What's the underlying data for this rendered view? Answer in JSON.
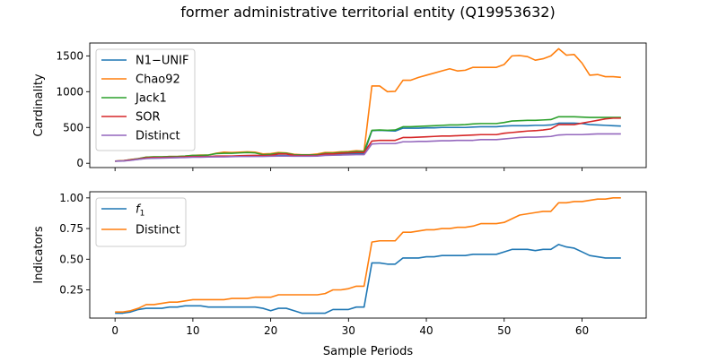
{
  "figure": {
    "title": "former administrative territorial entity (Q19953632)",
    "xlabel": "Sample Periods"
  },
  "chart_data": [
    {
      "type": "line",
      "ylabel": "Cardinality",
      "xlim": [
        -3.25,
        68.25
      ],
      "ylim": [
        -60,
        1680
      ],
      "xticks": [
        0,
        10,
        20,
        30,
        40,
        50,
        60
      ],
      "xtick_labels_visible": false,
      "yticks": [
        0,
        500,
        1000,
        1500
      ],
      "ytick_labels": [
        "0",
        "500",
        "1000",
        "1500"
      ],
      "grid": false,
      "legend": "top-left",
      "x": [
        0,
        1,
        2,
        3,
        4,
        5,
        6,
        7,
        8,
        9,
        10,
        11,
        12,
        13,
        14,
        15,
        16,
        17,
        18,
        19,
        20,
        21,
        22,
        23,
        24,
        25,
        26,
        27,
        28,
        29,
        30,
        31,
        32,
        33,
        34,
        35,
        36,
        37,
        38,
        39,
        40,
        41,
        42,
        43,
        44,
        45,
        46,
        47,
        48,
        49,
        50,
        51,
        52,
        53,
        54,
        55,
        56,
        57,
        58,
        59,
        60,
        61,
        62,
        63,
        64,
        65
      ],
      "series": [
        {
          "name": "N1−UNIF",
          "color": "#1f77b4",
          "values": [
            30,
            32,
            45,
            55,
            70,
            72,
            75,
            78,
            80,
            85,
            90,
            90,
            92,
            92,
            95,
            95,
            98,
            98,
            100,
            100,
            105,
            108,
            108,
            105,
            103,
            103,
            106,
            115,
            120,
            125,
            130,
            135,
            135,
            455,
            460,
            455,
            450,
            490,
            490,
            490,
            495,
            495,
            500,
            500,
            500,
            500,
            505,
            510,
            510,
            510,
            520,
            525,
            525,
            525,
            530,
            530,
            535,
            560,
            560,
            560,
            555,
            540,
            535,
            530,
            525,
            520
          ]
        },
        {
          "name": "Chao92",
          "color": "#ff7f0e",
          "values": [
            30,
            35,
            50,
            65,
            85,
            90,
            90,
            95,
            95,
            100,
            110,
            115,
            115,
            140,
            155,
            150,
            155,
            160,
            155,
            130,
            135,
            150,
            145,
            125,
            120,
            120,
            130,
            150,
            150,
            160,
            165,
            175,
            170,
            1080,
            1080,
            1000,
            1005,
            1160,
            1160,
            1200,
            1230,
            1260,
            1290,
            1320,
            1290,
            1300,
            1340,
            1340,
            1340,
            1340,
            1380,
            1500,
            1505,
            1490,
            1440,
            1460,
            1500,
            1600,
            1510,
            1520,
            1400,
            1230,
            1240,
            1210,
            1210,
            1200
          ]
        },
        {
          "name": "Jack1",
          "color": "#2ca02c",
          "values": [
            30,
            35,
            50,
            65,
            85,
            90,
            90,
            95,
            95,
            100,
            110,
            110,
            115,
            135,
            140,
            140,
            145,
            150,
            145,
            120,
            125,
            140,
            140,
            120,
            118,
            118,
            120,
            140,
            140,
            150,
            155,
            165,
            165,
            460,
            465,
            460,
            465,
            510,
            510,
            515,
            520,
            525,
            530,
            535,
            535,
            540,
            550,
            555,
            555,
            555,
            570,
            590,
            595,
            600,
            600,
            605,
            610,
            650,
            650,
            650,
            645,
            640,
            640,
            640,
            640,
            640
          ]
        },
        {
          "name": "SOR",
          "color": "#d62728",
          "values": [
            30,
            35,
            48,
            60,
            75,
            80,
            80,
            85,
            85,
            90,
            95,
            95,
            95,
            100,
            100,
            100,
            105,
            108,
            110,
            108,
            110,
            130,
            130,
            110,
            108,
            108,
            110,
            130,
            130,
            140,
            145,
            150,
            150,
            310,
            320,
            320,
            320,
            360,
            360,
            365,
            370,
            375,
            380,
            380,
            385,
            390,
            395,
            400,
            400,
            400,
            420,
            430,
            440,
            450,
            455,
            465,
            480,
            540,
            540,
            540,
            560,
            580,
            600,
            620,
            630,
            630
          ]
        },
        {
          "name": "Distinct",
          "color": "#9467bd",
          "values": [
            30,
            32,
            40,
            55,
            65,
            70,
            72,
            75,
            78,
            80,
            85,
            85,
            88,
            90,
            90,
            92,
            95,
            95,
            95,
            95,
            98,
            100,
            100,
            98,
            98,
            98,
            100,
            110,
            112,
            115,
            118,
            120,
            120,
            270,
            275,
            275,
            275,
            300,
            300,
            305,
            305,
            310,
            315,
            315,
            320,
            320,
            320,
            330,
            330,
            330,
            340,
            350,
            360,
            365,
            365,
            370,
            375,
            395,
            400,
            400,
            400,
            405,
            410,
            410,
            410,
            410
          ]
        }
      ]
    },
    {
      "type": "line",
      "ylabel": "Indicators",
      "xlim": [
        -3.25,
        68.25
      ],
      "ylim": [
        0.02,
        1.05
      ],
      "xticks": [
        0,
        10,
        20,
        30,
        40,
        50,
        60
      ],
      "xtick_labels": [
        "0",
        "10",
        "20",
        "30",
        "40",
        "50",
        "60"
      ],
      "yticks": [
        0.25,
        0.5,
        0.75,
        1.0
      ],
      "ytick_labels": [
        "0.25",
        "0.50",
        "0.75",
        "1.00"
      ],
      "grid": false,
      "legend": "top-left",
      "x": [
        0,
        1,
        2,
        3,
        4,
        5,
        6,
        7,
        8,
        9,
        10,
        11,
        12,
        13,
        14,
        15,
        16,
        17,
        18,
        19,
        20,
        21,
        22,
        23,
        24,
        25,
        26,
        27,
        28,
        29,
        30,
        31,
        32,
        33,
        34,
        35,
        36,
        37,
        38,
        39,
        40,
        41,
        42,
        43,
        44,
        45,
        46,
        47,
        48,
        49,
        50,
        51,
        52,
        53,
        54,
        55,
        56,
        57,
        58,
        59,
        60,
        61,
        62,
        63,
        64,
        65
      ],
      "series": [
        {
          "name": "f",
          "name_subscript": "1",
          "color": "#1f77b4",
          "values": [
            0.06,
            0.06,
            0.07,
            0.09,
            0.1,
            0.1,
            0.1,
            0.11,
            0.11,
            0.12,
            0.12,
            0.12,
            0.11,
            0.11,
            0.11,
            0.11,
            0.11,
            0.11,
            0.11,
            0.1,
            0.08,
            0.1,
            0.1,
            0.08,
            0.06,
            0.06,
            0.06,
            0.06,
            0.09,
            0.09,
            0.09,
            0.11,
            0.11,
            0.47,
            0.47,
            0.46,
            0.46,
            0.51,
            0.51,
            0.51,
            0.52,
            0.52,
            0.53,
            0.53,
            0.53,
            0.53,
            0.54,
            0.54,
            0.54,
            0.54,
            0.56,
            0.58,
            0.58,
            0.58,
            0.57,
            0.58,
            0.58,
            0.62,
            0.6,
            0.59,
            0.56,
            0.53,
            0.52,
            0.51,
            0.51,
            0.51
          ]
        },
        {
          "name": "Distinct",
          "color": "#ff7f0e",
          "values": [
            0.07,
            0.07,
            0.08,
            0.1,
            0.13,
            0.13,
            0.14,
            0.15,
            0.15,
            0.16,
            0.17,
            0.17,
            0.17,
            0.17,
            0.17,
            0.18,
            0.18,
            0.18,
            0.19,
            0.19,
            0.19,
            0.21,
            0.21,
            0.21,
            0.21,
            0.21,
            0.21,
            0.22,
            0.25,
            0.25,
            0.26,
            0.28,
            0.28,
            0.64,
            0.65,
            0.65,
            0.65,
            0.72,
            0.72,
            0.73,
            0.74,
            0.74,
            0.75,
            0.75,
            0.76,
            0.76,
            0.77,
            0.79,
            0.79,
            0.79,
            0.8,
            0.83,
            0.86,
            0.87,
            0.88,
            0.89,
            0.89,
            0.96,
            0.96,
            0.97,
            0.97,
            0.98,
            0.99,
            0.99,
            1.0,
            1.0
          ]
        }
      ]
    }
  ]
}
